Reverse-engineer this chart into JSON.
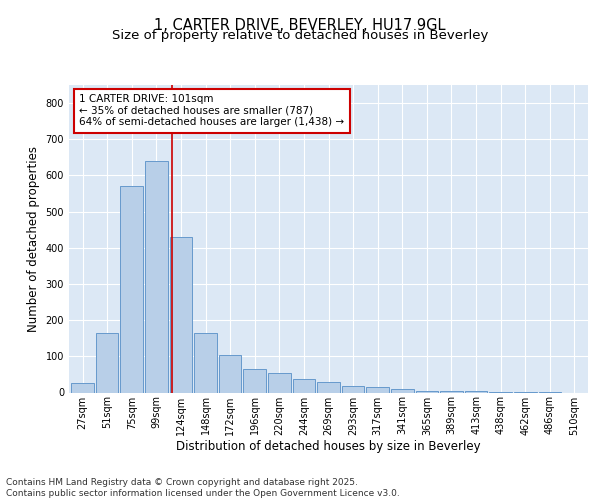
{
  "title_line1": "1, CARTER DRIVE, BEVERLEY, HU17 9GL",
  "title_line2": "Size of property relative to detached houses in Beverley",
  "xlabel": "Distribution of detached houses by size in Beverley",
  "ylabel": "Number of detached properties",
  "bin_labels": [
    "27sqm",
    "51sqm",
    "75sqm",
    "99sqm",
    "124sqm",
    "148sqm",
    "172sqm",
    "196sqm",
    "220sqm",
    "244sqm",
    "269sqm",
    "293sqm",
    "317sqm",
    "341sqm",
    "365sqm",
    "389sqm",
    "413sqm",
    "438sqm",
    "462sqm",
    "486sqm",
    "510sqm"
  ],
  "bar_values": [
    25,
    165,
    570,
    640,
    430,
    165,
    105,
    65,
    55,
    38,
    30,
    18,
    15,
    9,
    5,
    4,
    3,
    2,
    1,
    1,
    0
  ],
  "bar_color": "#b8cfe8",
  "bar_edge_color": "#6699cc",
  "plot_bg_color": "#dce8f5",
  "fig_bg_color": "#ffffff",
  "grid_color": "#ffffff",
  "red_line_x": 3.62,
  "annotation_text": "1 CARTER DRIVE: 101sqm\n← 35% of detached houses are smaller (787)\n64% of semi-detached houses are larger (1,438) →",
  "annotation_box_facecolor": "#ffffff",
  "annotation_box_edgecolor": "#cc0000",
  "ylim": [
    0,
    850
  ],
  "yticks": [
    0,
    100,
    200,
    300,
    400,
    500,
    600,
    700,
    800
  ],
  "footnote": "Contains HM Land Registry data © Crown copyright and database right 2025.\nContains public sector information licensed under the Open Government Licence v3.0.",
  "title_fontsize": 10.5,
  "subtitle_fontsize": 9.5,
  "axis_label_fontsize": 8.5,
  "tick_fontsize": 7,
  "annotation_fontsize": 7.5,
  "footnote_fontsize": 6.5
}
